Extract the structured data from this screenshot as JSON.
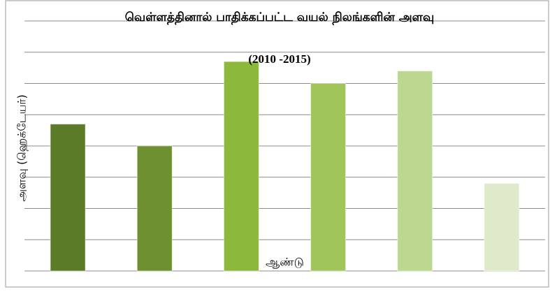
{
  "chart_data": {
    "type": "bar",
    "title": "வெள்ளத்தினால் பாதிக்கப்பட்ட வயல் நிலங்களின் அளவு",
    "subtitle": "(2010 -2015)",
    "y_label": "அளவு (ஹெக்டேயர்)",
    "x_label": "ஆண்டு",
    "categories": [
      null,
      null,
      null,
      null,
      null,
      null
    ],
    "values": [
      4.7,
      4.0,
      6.7,
      6.0,
      6.4,
      2.8
    ],
    "colors": [
      "#5b7b28",
      "#6e9030",
      "#8cb83c",
      "#a0c65a",
      "#bcd78f",
      "#dfeacb"
    ],
    "ylim": [
      0,
      8
    ],
    "yticks": [
      0,
      1,
      2,
      3,
      4,
      5,
      6,
      7,
      8
    ],
    "grid": true
  }
}
